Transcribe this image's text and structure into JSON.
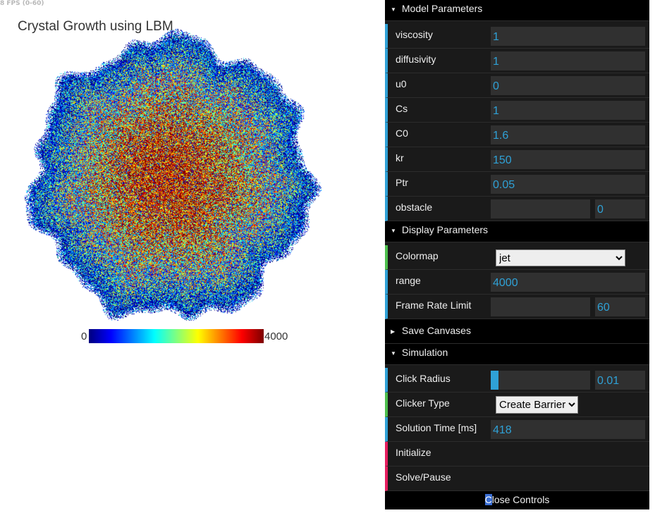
{
  "fps_text": "8 FPS (0-60)",
  "sim_title": "Crystal Growth using LBM",
  "colorbar": {
    "min_label": "0",
    "max_label": "4000"
  },
  "colors": {
    "accent": "#2fa1d6",
    "select_accent": "#4dbf4d",
    "function_accent": "#e61d5f",
    "panel_bg": "#1a1a1a"
  },
  "gui": {
    "model_parameters": {
      "title": "Model Parameters",
      "rows": [
        {
          "label": "viscosity",
          "value": "1"
        },
        {
          "label": "diffusivity",
          "value": "1"
        },
        {
          "label": "u0",
          "value": "0"
        },
        {
          "label": "Cs",
          "value": "1"
        },
        {
          "label": "C0",
          "value": "1.6"
        },
        {
          "label": "kr",
          "value": "150"
        },
        {
          "label": "Ptr",
          "value": "0.05"
        }
      ],
      "obstacle": {
        "label": "obstacle",
        "value": "0",
        "slider_fraction": 0
      }
    },
    "display_parameters": {
      "title": "Display Parameters",
      "colormap": {
        "label": "Colormap",
        "value": "jet"
      },
      "range": {
        "label": "range",
        "value": "4000"
      },
      "frame_rate": {
        "label": "Frame Rate Limit",
        "value": "60",
        "slider_fraction": 0
      }
    },
    "save_canvases": {
      "title": "Save Canvases"
    },
    "simulation": {
      "title": "Simulation",
      "click_radius": {
        "label": "Click Radius",
        "value": "0.01",
        "slider_fraction": 0.08
      },
      "clicker_type": {
        "label": "Clicker Type",
        "value": "Create Barrier"
      },
      "solution_time": {
        "label": "Solution Time [ms]",
        "value": "418"
      },
      "initialize": {
        "label": "Initialize"
      },
      "solve_pause": {
        "label": "Solve/Pause"
      }
    },
    "close_controls": {
      "first_letter": "C",
      "rest": "lose Controls"
    }
  }
}
